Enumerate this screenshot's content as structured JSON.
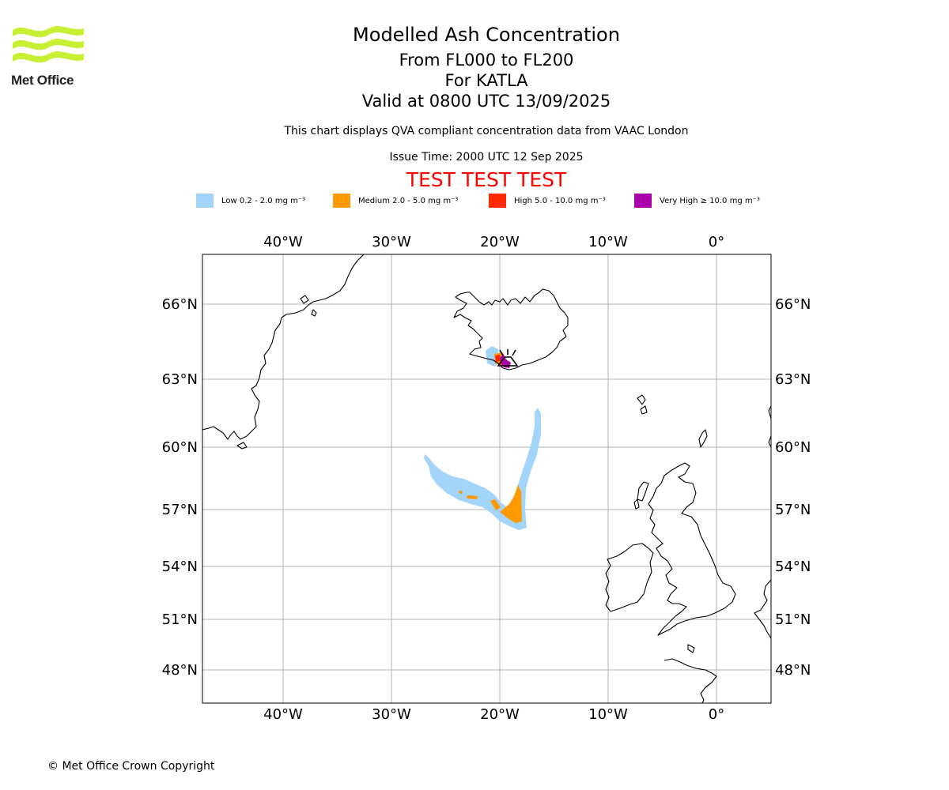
{
  "header": {
    "logo_text": "Met Office",
    "title": "Modelled Ash Concentration",
    "levels": "From FL000 to FL200",
    "volcano": "For KATLA",
    "valid": "Valid at 0800 UTC 13/09/2025",
    "description": "This chart displays QVA compliant concentration data from VAAC London",
    "issue_time": "Issue Time: 2000 UTC 12 Sep 2025",
    "test_banner": "TEST TEST TEST"
  },
  "legend": [
    {
      "label": "Low 0.2 - 2.0 mg m⁻³",
      "color": "#a3d5fa"
    },
    {
      "label": "Medium 2.0 - 5.0 mg m⁻³",
      "color": "#ff9900"
    },
    {
      "label": "High 5.0 - 10.0 mg m⁻³",
      "color": "#ff2a00"
    },
    {
      "label": "Very High ≥ 10.0 mg m⁻³",
      "color": "#aa00aa"
    }
  ],
  "map": {
    "lon_ticks": [
      "40°W",
      "30°W",
      "20°W",
      "10°W",
      "0°"
    ],
    "lat_ticks": [
      "66°N",
      "63°N",
      "60°N",
      "57°N",
      "54°N",
      "51°N",
      "48°N"
    ],
    "volcano_symbol": "volcano-marker"
  },
  "footer": {
    "copyright": "© Met Office Crown Copyright"
  }
}
